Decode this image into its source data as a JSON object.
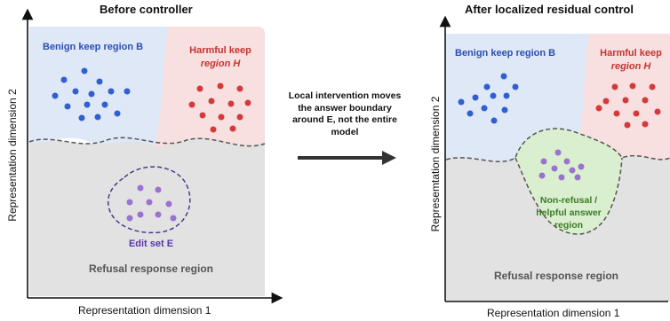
{
  "left_panel": {
    "title": "Before controller",
    "y_axis_label": "Representation dimension 2",
    "x_axis_label": "Representation dimension 1",
    "benign_label": "Benign keep region B",
    "harmful_label_line1": "Harmful keep",
    "harmful_label_line2": "region H",
    "edit_set_label": "Edit set E",
    "refusal_label": "Refusal response region"
  },
  "middle": {
    "line1": "Local intervention moves",
    "line2": "the answer boundary",
    "line3": "around E, not the entire",
    "line4": "model"
  },
  "right_panel": {
    "title": "After localized residual control",
    "y_axis_label": "Represemtation dimension 2",
    "x_axis_label": "Representation dimension 1",
    "benign_label": "Benign keep region B",
    "harmful_label_line1": "Harmful keep",
    "harmful_label_line2": "region H",
    "nonrefusal_line1": "Non-refusal /",
    "nonrefusal_line2": "helpful answer",
    "nonrefusal_line3": "region",
    "refusal_label": "Refusal response region"
  },
  "colors": {
    "benign_fill": "#dfe8f7",
    "harmful_fill": "#f8dfe0",
    "refusal_fill": "#e2e2e2",
    "nonrefusal_fill": "#d9efcf",
    "blue_dot": "#2f5fd0",
    "red_dot": "#d43a3a",
    "purple_dot": "#9a72cf",
    "blue_text": "#2b4fb3",
    "red_text": "#c4342f",
    "purple_text": "#5a36a8",
    "green_text": "#3d7a26"
  }
}
